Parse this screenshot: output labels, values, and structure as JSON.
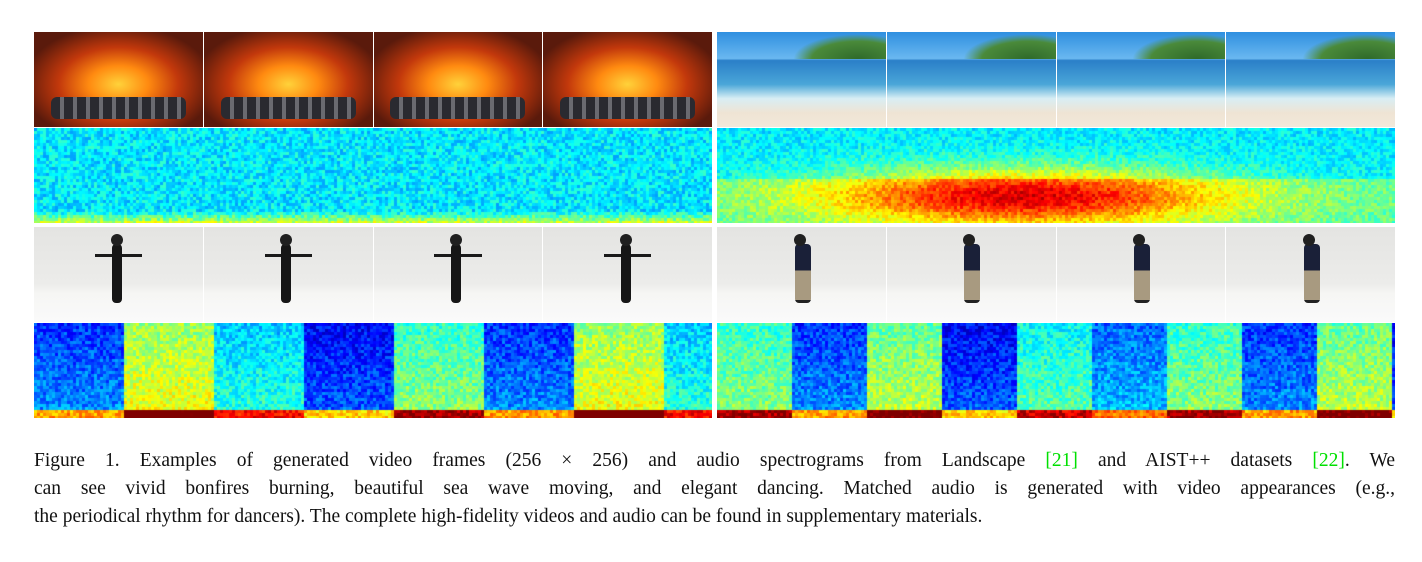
{
  "figure": {
    "panels": [
      {
        "name": "landscape-fire",
        "frame_type": "fire",
        "frames": 4
      },
      {
        "name": "landscape-beach",
        "frame_type": "beach",
        "frames": 4
      },
      {
        "name": "aist-dancer-1",
        "frame_type": "dance",
        "frames": 4
      },
      {
        "name": "aist-dancer-2",
        "frame_type": "dance",
        "frames": 4
      }
    ],
    "colormap": "jet",
    "citation_color": "#00e000"
  },
  "caption": {
    "line1_a": "Figure 1. Examples of generated video frames (256 × 256) and audio spectrograms from Landscape ",
    "cite1": "[21]",
    "line1_b": " and AIST++ datasets ",
    "cite2": "[22]",
    "line1_c": ". We",
    "line2": "can see vivid bonfires burning, beautiful sea wave moving, and elegant dancing. Matched audio is generated with video appearances (e.g.,",
    "line3": "the periodical rhythm for dancers). The complete high-fidelity videos and audio can be found in supplementary materials."
  }
}
